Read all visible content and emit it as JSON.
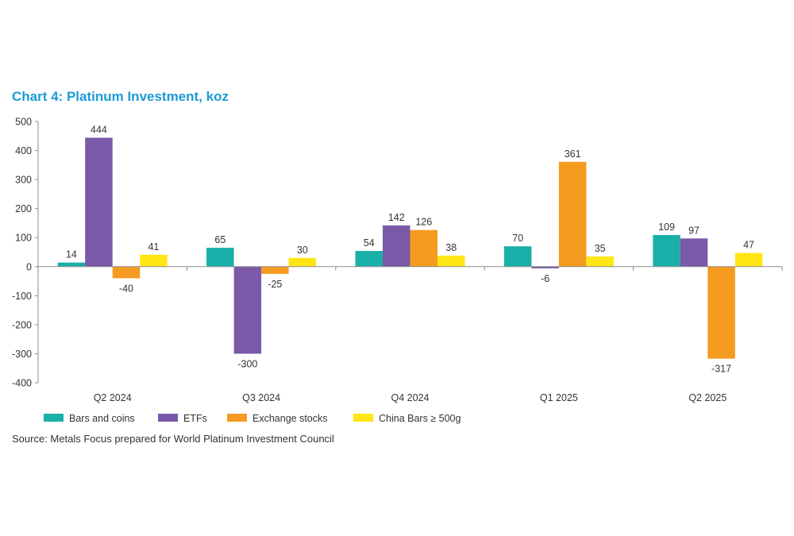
{
  "chart_title": "Chart 4: Platinum Investment, koz",
  "source": "Source: Metals Focus prepared for World Platinum Investment Council",
  "chart_data": {
    "type": "bar",
    "title": "Chart 4: Platinum Investment, koz",
    "xlabel": "",
    "ylabel": "",
    "ylim": [
      -400,
      500
    ],
    "yticks": [
      500,
      400,
      300,
      200,
      100,
      0,
      -100,
      -200,
      -300,
      -400
    ],
    "categories": [
      "Q2 2024",
      "Q3 2024",
      "Q4 2024",
      "Q1 2025",
      "Q2 2025"
    ],
    "series": [
      {
        "name": "Bars and coins",
        "color": "#1AAFA8",
        "values": [
          14,
          65,
          54,
          70,
          109
        ]
      },
      {
        "name": "ETFs",
        "color": "#7A59A8",
        "values": [
          444,
          -300,
          142,
          -6,
          97
        ]
      },
      {
        "name": "Exchange stocks",
        "color": "#F59B20",
        "values": [
          -40,
          -25,
          126,
          361,
          -317
        ]
      },
      {
        "name": "China Bars ≥ 500g",
        "color": "#FFE614",
        "values": [
          41,
          30,
          38,
          35,
          47
        ]
      }
    ],
    "legend_position": "bottom"
  }
}
